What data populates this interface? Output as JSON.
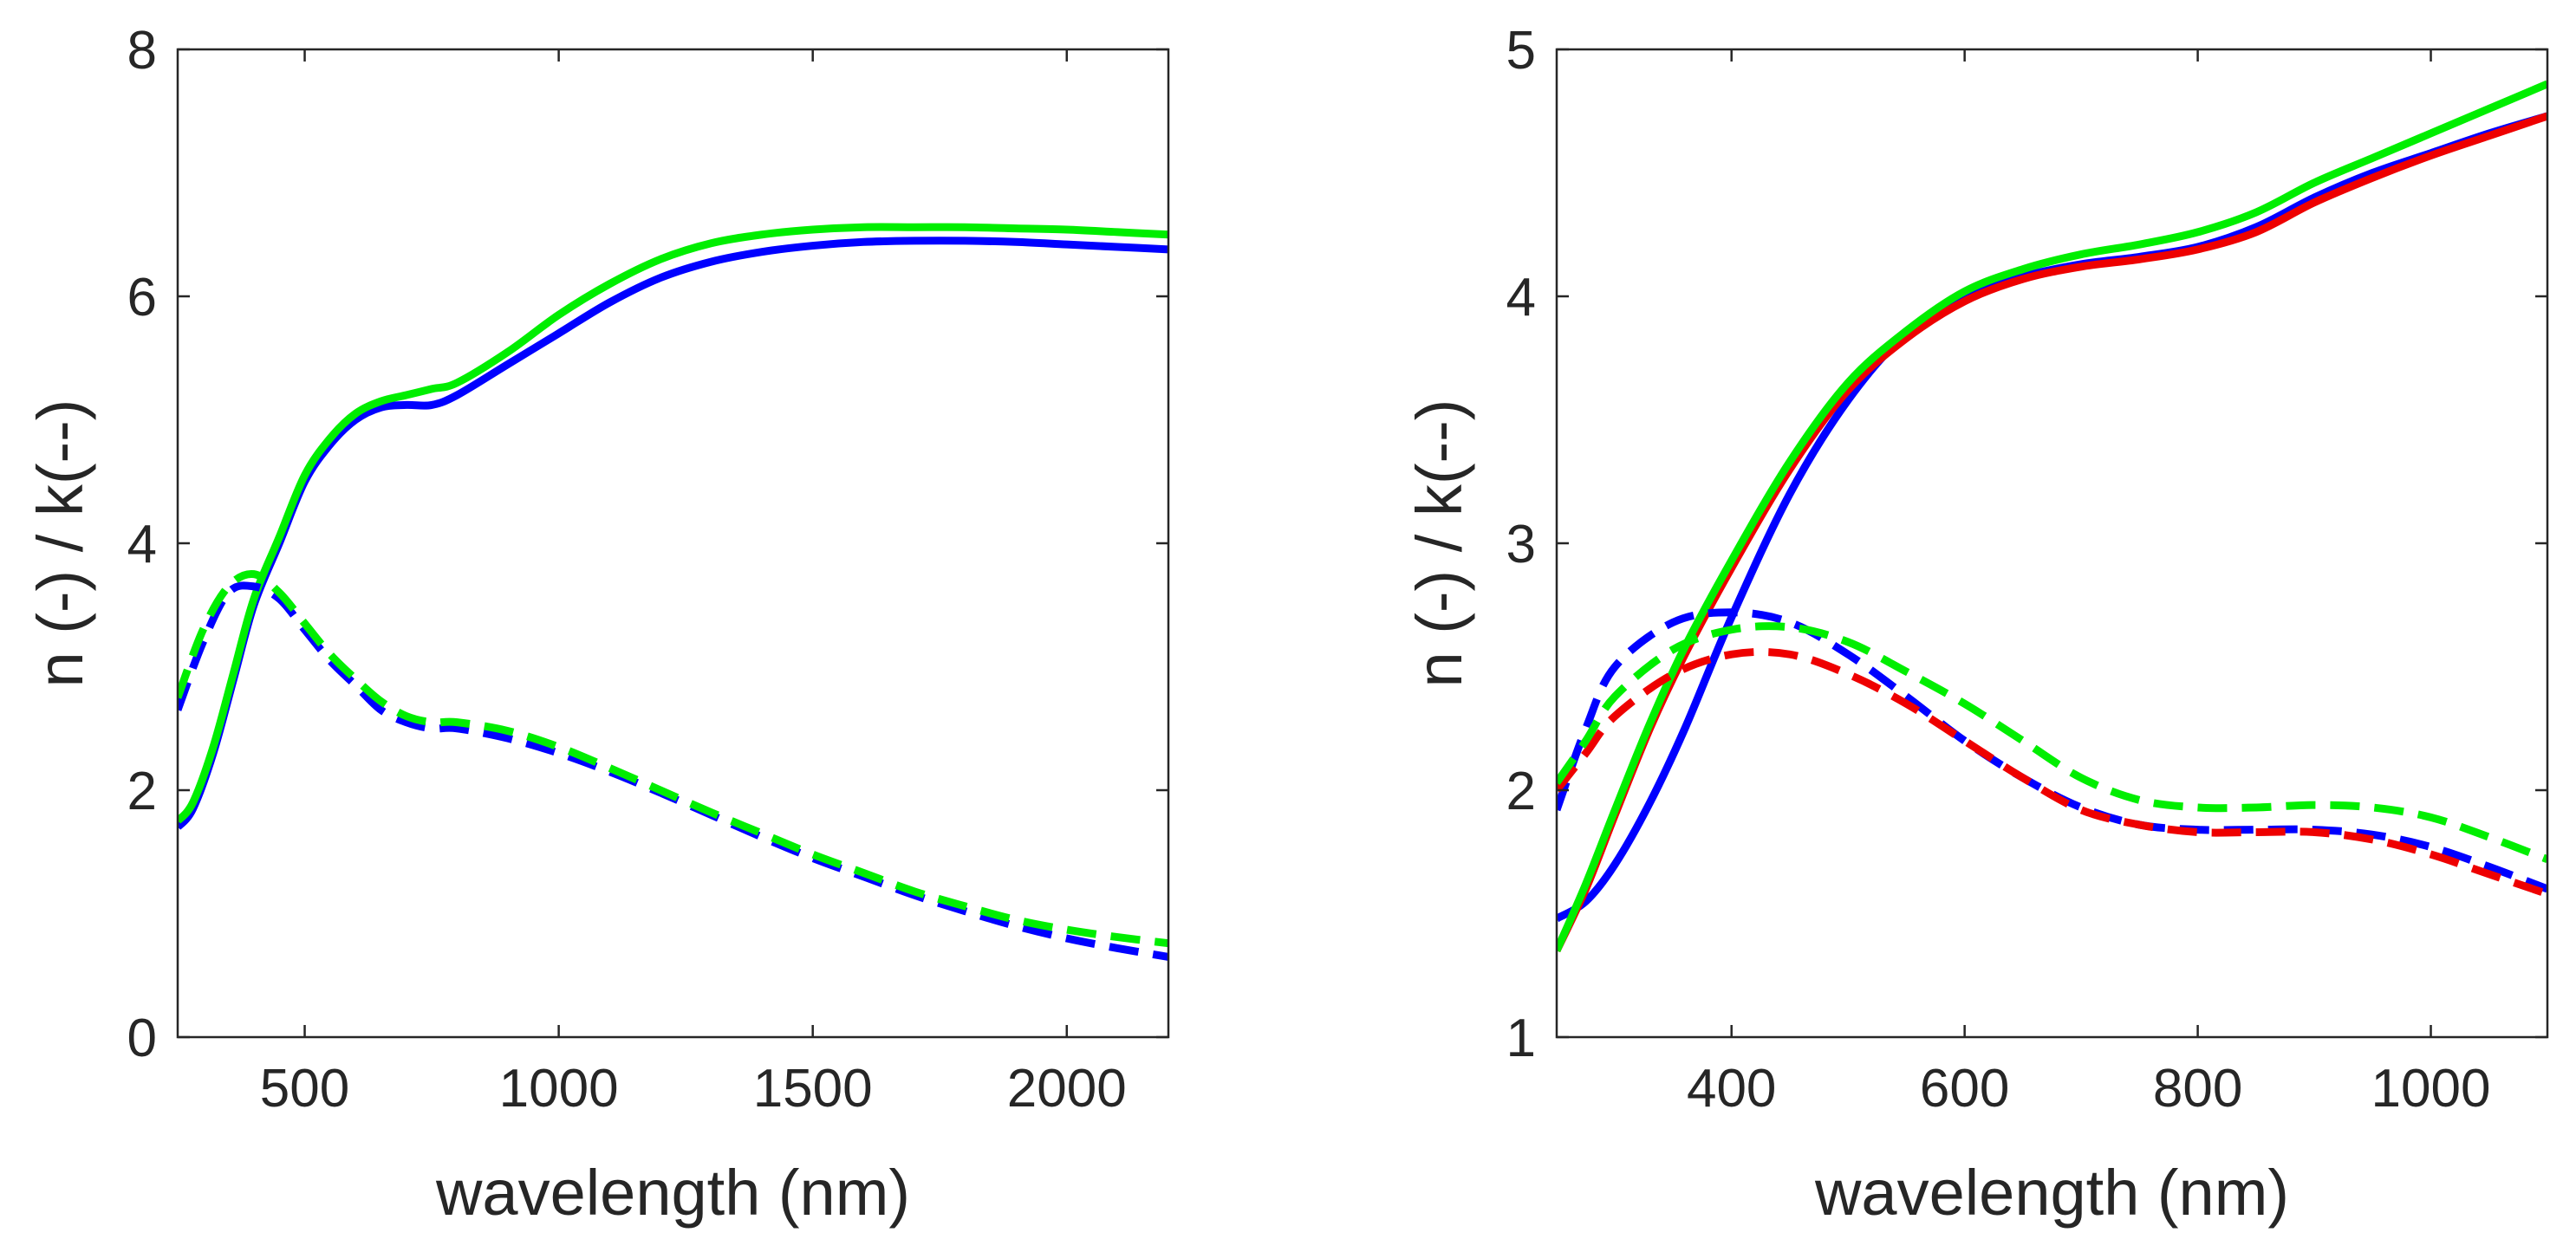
{
  "chart_data": [
    {
      "type": "line",
      "panel": "left",
      "xlabel": "wavelength (nm)",
      "ylabel": "n (-) / k(--)",
      "xlim": [
        250,
        2200
      ],
      "ylim": [
        0,
        8
      ],
      "xticks": [
        500,
        1000,
        1500,
        2000
      ],
      "xtick_labels": [
        "500",
        "1000",
        "1500",
        "2000"
      ],
      "yticks": [
        0,
        2,
        4,
        6,
        8
      ],
      "ytick_labels": [
        "0",
        "2",
        "4",
        "6",
        "8"
      ],
      "grid": false,
      "legend": "none",
      "series": [
        {
          "name": "n blue",
          "color": "#0000ff",
          "dash": "solid",
          "x": [
            250,
            280,
            320,
            360,
            400,
            450,
            500,
            550,
            600,
            650,
            700,
            750,
            800,
            900,
            1000,
            1100,
            1200,
            1300,
            1400,
            1500,
            1600,
            1700,
            1800,
            1900,
            2000,
            2100,
            2200
          ],
          "y": [
            1.7,
            1.85,
            2.3,
            2.9,
            3.5,
            4.0,
            4.5,
            4.8,
            5.0,
            5.1,
            5.12,
            5.12,
            5.2,
            5.45,
            5.7,
            5.95,
            6.15,
            6.28,
            6.36,
            6.41,
            6.44,
            6.45,
            6.45,
            6.44,
            6.42,
            6.4,
            6.38
          ]
        },
        {
          "name": "n green",
          "color": "#00ee00",
          "dash": "solid",
          "x": [
            250,
            280,
            320,
            360,
            400,
            450,
            500,
            550,
            600,
            650,
            700,
            750,
            800,
            900,
            1000,
            1100,
            1200,
            1300,
            1400,
            1500,
            1600,
            1700,
            1800,
            1900,
            2000,
            2100,
            2200
          ],
          "y": [
            1.75,
            1.9,
            2.35,
            2.95,
            3.55,
            4.05,
            4.55,
            4.85,
            5.05,
            5.15,
            5.2,
            5.25,
            5.3,
            5.55,
            5.85,
            6.1,
            6.3,
            6.43,
            6.5,
            6.54,
            6.56,
            6.56,
            6.56,
            6.55,
            6.54,
            6.52,
            6.5
          ]
        },
        {
          "name": "k blue",
          "color": "#0000ff",
          "dash": "dashed",
          "x": [
            250,
            300,
            350,
            400,
            450,
            500,
            550,
            600,
            650,
            700,
            750,
            800,
            900,
            1000,
            1100,
            1200,
            1300,
            1400,
            1500,
            1600,
            1700,
            1800,
            1900,
            2000,
            2100,
            2200
          ],
          "y": [
            2.65,
            3.2,
            3.6,
            3.65,
            3.55,
            3.3,
            3.05,
            2.85,
            2.65,
            2.55,
            2.5,
            2.5,
            2.42,
            2.3,
            2.15,
            1.98,
            1.8,
            1.62,
            1.45,
            1.3,
            1.15,
            1.02,
            0.9,
            0.8,
            0.72,
            0.65
          ]
        },
        {
          "name": "k green",
          "color": "#00ee00",
          "dash": "dashed",
          "x": [
            250,
            300,
            350,
            400,
            450,
            500,
            550,
            600,
            650,
            700,
            750,
            800,
            900,
            1000,
            1100,
            1200,
            1300,
            1400,
            1500,
            1600,
            1700,
            1800,
            1900,
            2000,
            2100,
            2200
          ],
          "y": [
            2.75,
            3.3,
            3.65,
            3.75,
            3.6,
            3.35,
            3.1,
            2.9,
            2.72,
            2.6,
            2.55,
            2.55,
            2.48,
            2.35,
            2.18,
            2.0,
            1.82,
            1.65,
            1.48,
            1.33,
            1.18,
            1.06,
            0.95,
            0.87,
            0.81,
            0.76
          ]
        }
      ]
    },
    {
      "type": "line",
      "panel": "right",
      "xlabel": "wavelength (nm)",
      "ylabel": "n (-) / k(--)",
      "xlim": [
        250,
        1100
      ],
      "ylim": [
        1,
        5
      ],
      "xticks": [
        400,
        600,
        800,
        1000
      ],
      "xtick_labels": [
        "400",
        "600",
        "800",
        "1000"
      ],
      "yticks": [
        1,
        2,
        3,
        4,
        5
      ],
      "ytick_labels": [
        "1",
        "2",
        "3",
        "4",
        "5"
      ],
      "grid": false,
      "legend": "none",
      "series": [
        {
          "name": "n blue",
          "color": "#0000ff",
          "dash": "solid",
          "x": [
            250,
            275,
            300,
            330,
            360,
            400,
            450,
            500,
            550,
            600,
            650,
            700,
            750,
            800,
            850,
            900,
            950,
            1000,
            1050,
            1100
          ],
          "y": [
            1.48,
            1.55,
            1.7,
            1.95,
            2.25,
            2.7,
            3.2,
            3.58,
            3.85,
            4.0,
            4.08,
            4.13,
            4.16,
            4.2,
            4.28,
            4.4,
            4.5,
            4.58,
            4.66,
            4.73
          ]
        },
        {
          "name": "n red",
          "color": "#ee0000",
          "dash": "solid",
          "x": [
            250,
            275,
            300,
            330,
            360,
            400,
            450,
            500,
            550,
            600,
            650,
            700,
            750,
            800,
            850,
            900,
            950,
            1000,
            1050,
            1100
          ],
          "y": [
            1.35,
            1.6,
            1.9,
            2.25,
            2.55,
            2.9,
            3.3,
            3.62,
            3.83,
            3.98,
            4.07,
            4.12,
            4.15,
            4.19,
            4.26,
            4.38,
            4.48,
            4.57,
            4.65,
            4.73
          ]
        },
        {
          "name": "n green",
          "color": "#00ee00",
          "dash": "solid",
          "x": [
            250,
            275,
            300,
            330,
            360,
            400,
            450,
            500,
            550,
            600,
            650,
            700,
            750,
            800,
            850,
            900,
            950,
            1000,
            1050,
            1100
          ],
          "y": [
            1.35,
            1.62,
            1.92,
            2.27,
            2.58,
            2.93,
            3.33,
            3.65,
            3.86,
            4.02,
            4.11,
            4.17,
            4.21,
            4.26,
            4.34,
            4.46,
            4.56,
            4.66,
            4.76,
            4.86
          ]
        },
        {
          "name": "k blue",
          "color": "#0000ff",
          "dash": "dashed",
          "x": [
            250,
            275,
            300,
            350,
            400,
            450,
            500,
            550,
            600,
            650,
            700,
            750,
            800,
            850,
            900,
            950,
            1000,
            1050,
            1100
          ],
          "y": [
            1.92,
            2.25,
            2.5,
            2.68,
            2.72,
            2.68,
            2.55,
            2.38,
            2.2,
            2.05,
            1.93,
            1.86,
            1.84,
            1.84,
            1.84,
            1.82,
            1.77,
            1.69,
            1.6
          ]
        },
        {
          "name": "k red",
          "color": "#ee0000",
          "dash": "dashed",
          "x": [
            250,
            275,
            300,
            350,
            400,
            450,
            500,
            550,
            600,
            650,
            700,
            750,
            800,
            850,
            900,
            950,
            1000,
            1050,
            1100
          ],
          "y": [
            2.0,
            2.15,
            2.3,
            2.47,
            2.55,
            2.55,
            2.47,
            2.35,
            2.2,
            2.05,
            1.92,
            1.86,
            1.83,
            1.83,
            1.83,
            1.8,
            1.74,
            1.66,
            1.58
          ]
        },
        {
          "name": "k green",
          "color": "#00ee00",
          "dash": "dashed",
          "x": [
            250,
            275,
            300,
            350,
            400,
            450,
            500,
            550,
            600,
            650,
            700,
            750,
            800,
            850,
            900,
            950,
            1000,
            1050,
            1100
          ],
          "y": [
            2.03,
            2.2,
            2.38,
            2.57,
            2.65,
            2.66,
            2.6,
            2.48,
            2.35,
            2.2,
            2.05,
            1.96,
            1.93,
            1.93,
            1.94,
            1.93,
            1.89,
            1.81,
            1.72
          ]
        }
      ]
    }
  ]
}
